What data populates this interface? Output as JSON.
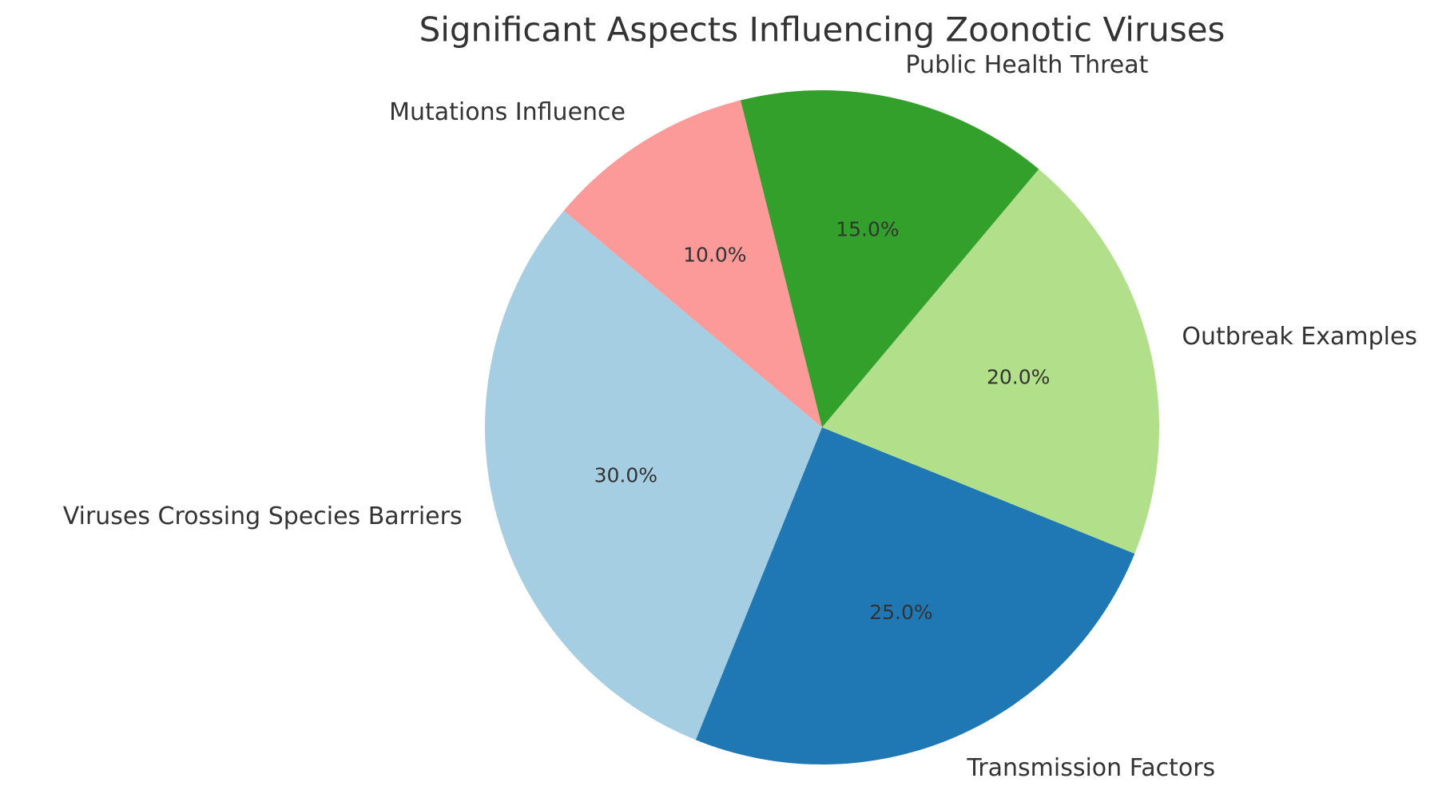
{
  "chart_data": {
    "type": "pie",
    "title": "Significant Aspects Influencing Zoonotic Viruses",
    "categories": [
      "Viruses Crossing Species Barriers",
      "Transmission Factors",
      "Outbreak Examples",
      "Public Health Threat",
      "Mutations Influence"
    ],
    "values": [
      30,
      25,
      20,
      15,
      10
    ],
    "value_labels": [
      "30.0%",
      "25.0%",
      "20.0%",
      "15.0%",
      "10.0%"
    ],
    "colors": [
      "#a6cee3",
      "#1f78b4",
      "#b2df8a",
      "#33a02c",
      "#fb9a99"
    ]
  }
}
